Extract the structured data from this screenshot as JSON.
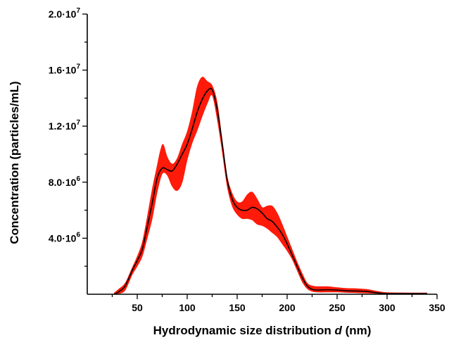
{
  "chart_data": {
    "type": "line",
    "title": "",
    "xlabel_prefix": "Hydrodynamic size distribution ",
    "xlabel_var": "d",
    "xlabel_suffix": " (nm)",
    "ylabel": "Concentration (particles/mL)",
    "xlim": [
      0,
      350
    ],
    "ylim": [
      0,
      20000000
    ],
    "x_ticks": [
      50,
      100,
      150,
      200,
      250,
      300,
      350
    ],
    "y_ticks": [
      {
        "value": 4000000,
        "mantissa": "4.0·10",
        "exp": "6"
      },
      {
        "value": 8000000,
        "mantissa": "8.0·10",
        "exp": "6"
      },
      {
        "value": 12000000,
        "mantissa": "1.2·10",
        "exp": "7"
      },
      {
        "value": 16000000,
        "mantissa": "1.6·10",
        "exp": "7"
      },
      {
        "value": 20000000,
        "mantissa": "2.0·10",
        "exp": "7"
      }
    ],
    "grid": false,
    "colors": {
      "mean": "#000000",
      "band": "#ff1a0a"
    },
    "series": [
      {
        "role": "mean",
        "x": [
          27,
          32,
          38,
          45,
          50,
          55,
          60,
          65,
          70,
          75,
          80,
          85,
          90,
          95,
          100,
          105,
          110,
          115,
          120,
          125,
          130,
          135,
          140,
          145,
          150,
          155,
          160,
          165,
          170,
          175,
          180,
          185,
          190,
          195,
          200,
          205,
          210,
          215,
          220,
          225,
          230,
          240,
          250,
          260,
          270,
          280,
          290,
          300,
          320,
          340
        ],
        "y": [
          0,
          200000,
          600000,
          1700000,
          2400000,
          3200000,
          4800000,
          6500000,
          8300000,
          9000000,
          8900000,
          8800000,
          9300000,
          10000000,
          10700000,
          11800000,
          13000000,
          13900000,
          14500000,
          14600000,
          13200000,
          10800000,
          8200000,
          6800000,
          6200000,
          6000000,
          6000000,
          6200000,
          6100000,
          5800000,
          5400000,
          5200000,
          4800000,
          4300000,
          3600000,
          2800000,
          2000000,
          1200000,
          600000,
          350000,
          300000,
          320000,
          300000,
          250000,
          230000,
          200000,
          100000,
          50000,
          50000,
          50000
        ]
      },
      {
        "role": "upper",
        "x": [
          27,
          32,
          38,
          45,
          50,
          55,
          60,
          65,
          70,
          73,
          76,
          80,
          85,
          90,
          95,
          100,
          105,
          110,
          115,
          120,
          125,
          130,
          135,
          140,
          145,
          150,
          155,
          160,
          165,
          170,
          175,
          180,
          185,
          190,
          195,
          200,
          205,
          210,
          215,
          220,
          225,
          230,
          240,
          250,
          260,
          270,
          280,
          290,
          300,
          320,
          340
        ],
        "y": [
          100000,
          400000,
          800000,
          1900000,
          2700000,
          3700000,
          5500000,
          7500000,
          9200000,
          10200000,
          10700000,
          9800000,
          9300000,
          9700000,
          10700000,
          11600000,
          13000000,
          14800000,
          15500000,
          15200000,
          14900000,
          13700000,
          11000000,
          8400000,
          7200000,
          6600000,
          6600000,
          7100000,
          7300000,
          6800000,
          6200000,
          6300000,
          6300000,
          5800000,
          5000000,
          4100000,
          3200000,
          2300000,
          1500000,
          800000,
          600000,
          550000,
          550000,
          480000,
          420000,
          400000,
          350000,
          220000,
          120000,
          100000,
          100000
        ]
      },
      {
        "role": "lower",
        "x": [
          27,
          32,
          38,
          45,
          50,
          55,
          60,
          65,
          70,
          75,
          80,
          85,
          90,
          95,
          100,
          105,
          110,
          115,
          120,
          125,
          130,
          135,
          140,
          145,
          150,
          155,
          160,
          165,
          170,
          175,
          180,
          185,
          190,
          195,
          200,
          205,
          210,
          215,
          220,
          225,
          230,
          240,
          250,
          260,
          270,
          280,
          290,
          300,
          320,
          340
        ],
        "y": [
          0,
          50000,
          300000,
          1400000,
          2000000,
          2700000,
          4000000,
          5400000,
          7300000,
          8600000,
          8500000,
          7700000,
          7400000,
          8000000,
          9600000,
          10800000,
          11700000,
          12700000,
          13600000,
          14200000,
          12500000,
          10200000,
          7700000,
          6300000,
          5700000,
          5400000,
          5400000,
          5300000,
          5000000,
          4900000,
          4700000,
          4400000,
          4100000,
          3600000,
          3100000,
          2500000,
          1700000,
          900000,
          400000,
          200000,
          150000,
          150000,
          150000,
          120000,
          100000,
          80000,
          50000,
          0,
          0,
          0
        ]
      }
    ]
  }
}
